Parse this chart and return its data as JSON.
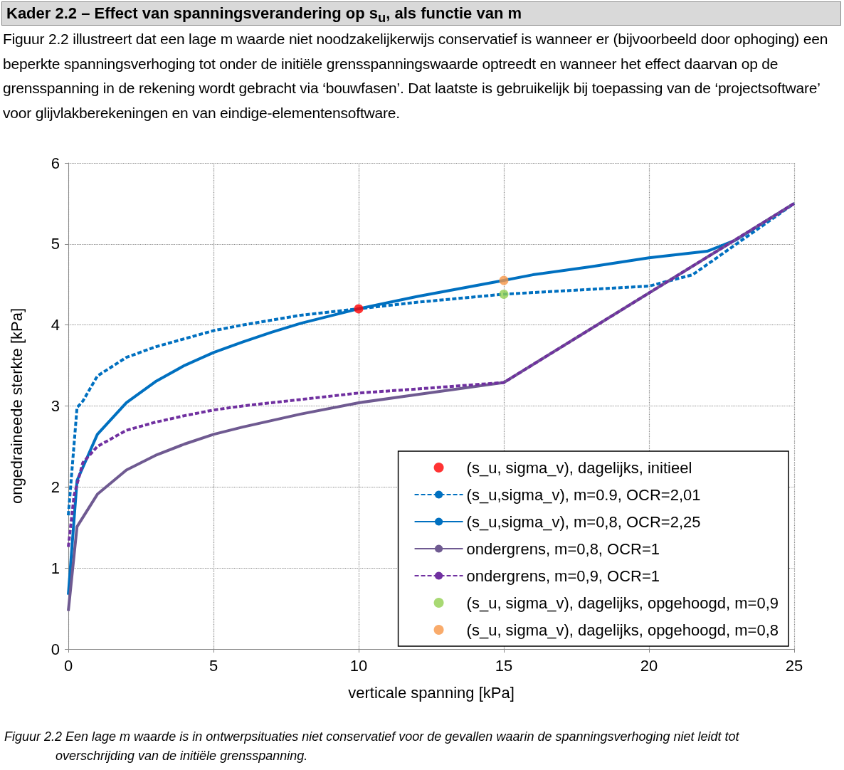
{
  "chart_data": {
    "type": "line",
    "title": "Kader 2.2 – Effect van spanningsverandering op s$_{u}$, als functie van m",
    "subtitle": "Figuur 2.2 illustreert dat een lage m waarde niet noodzakelijkerwijs conservatief is wanneer er (bijvoorbeeld door ophoging) een beperkte spanningsverhoging tot onder de initiële grensspanningswaarde optreedt en wanneer het effect daarvan op de grensspanning in de rekening wordt gebracht via ‘bouwfasen’. Dat laatste is gebruikelijk bij toepassing van de ‘projectsoftware’ voor glijvlakberekeningen en van eindige-elementensoftware.",
    "xlabel": "verticale spanning [kPa]",
    "ylabel": "ongedraineede sterkte [kPa]",
    "annotations": [
      "Figuur 2.2   Een lage m waarde is in ontwerpsituaties niet conservatief voor de gevallen waarin de spanningsverhoging niet leidt tot overschrijding van de initiële grensspanning."
    ],
    "xlim": [
      0,
      25
    ],
    "xticks": [
      0,
      5,
      10,
      15,
      20,
      25
    ],
    "ylim": [
      0,
      6
    ],
    "yticks": [
      0,
      1,
      2,
      3,
      4,
      5,
      6
    ],
    "grid": true,
    "legend": "bottom right",
    "series": [
      {
        "name": "(s_u, sigma_v), dagelijks, initieel",
        "type": "scatter",
        "color": "#ff0000",
        "x": [
          10
        ],
        "values": [
          4.2
        ]
      },
      {
        "name": "(s_u,sigma_v), m=0.9, OCR=2,01",
        "line_style": "dashed",
        "color": "#0070c0",
        "x": [
          0,
          0.3,
          0.5,
          1,
          2,
          3,
          4,
          5,
          6,
          8,
          10,
          12,
          15,
          20,
          21.5,
          25
        ],
        "values": [
          1.65,
          2.98,
          3.06,
          3.37,
          3.6,
          3.73,
          3.83,
          3.93,
          4.0,
          4.12,
          4.2,
          4.28,
          4.38,
          4.48,
          4.62,
          5.5
        ]
      },
      {
        "name": "(s_u,sigma_v), m=0,8, OCR=2,25",
        "line_style": "solid",
        "color": "#0070c0",
        "x": [
          0,
          0.3,
          1,
          2,
          3,
          4,
          5,
          6,
          7,
          8,
          10,
          12,
          15,
          16,
          18,
          20,
          22,
          23,
          25
        ],
        "values": [
          0.67,
          2.08,
          2.65,
          3.04,
          3.3,
          3.5,
          3.66,
          3.79,
          3.91,
          4.02,
          4.2,
          4.35,
          4.55,
          4.62,
          4.72,
          4.83,
          4.91,
          5.05,
          5.5
        ]
      },
      {
        "name": "ondergrens, m=0,8, OCR=1",
        "line_style": "solid",
        "color": "#6f5a91",
        "x": [
          0,
          0.3,
          1,
          2,
          3,
          4,
          5,
          6,
          8,
          10,
          12,
          15,
          25
        ],
        "values": [
          0.47,
          1.51,
          1.91,
          2.21,
          2.39,
          2.53,
          2.65,
          2.74,
          2.9,
          3.04,
          3.14,
          3.29,
          5.5
        ]
      },
      {
        "name": "ondergrens, m=0,9, OCR=1",
        "line_style": "dashed",
        "color": "#7030a0",
        "x": [
          0,
          0.2,
          0.5,
          1,
          2,
          3,
          4,
          5,
          6,
          8,
          10,
          12,
          15,
          25
        ],
        "values": [
          1.26,
          1.9,
          2.3,
          2.5,
          2.7,
          2.8,
          2.88,
          2.95,
          3.0,
          3.08,
          3.16,
          3.21,
          3.29,
          5.5
        ]
      },
      {
        "name": "(s_u, sigma_v), dagelijks, opgehoogd, m=0,9",
        "type": "scatter",
        "color": "#92d050",
        "x": [
          15
        ],
        "values": [
          4.38
        ]
      },
      {
        "name": "(s_u, sigma_v), dagelijks, opgehoogd, m=0,8",
        "type": "scatter",
        "color": "#f79646",
        "x": [
          15
        ],
        "values": [
          4.55
        ]
      }
    ]
  }
}
